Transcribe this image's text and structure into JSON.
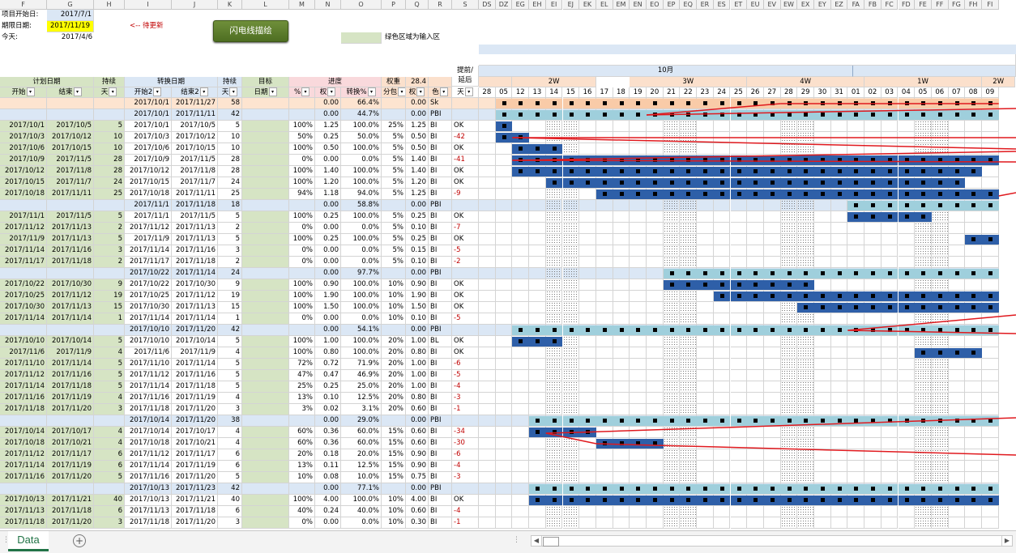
{
  "app": {
    "sheet_tab": "Data",
    "add_sheet": "+"
  },
  "col_letters_left": [
    "F",
    "G",
    "H",
    "I",
    "J",
    "K",
    "L",
    "M",
    "N",
    "O",
    "P",
    "Q",
    "R",
    "S"
  ],
  "col_letters_right": [
    "DS",
    "DZ",
    "EG",
    "EH",
    "EI",
    "EJ",
    "EK",
    "EL",
    "EM",
    "EN",
    "EO",
    "EP",
    "EQ",
    "ER",
    "ES",
    "ET",
    "EU",
    "EV",
    "EW",
    "EX",
    "EY",
    "EZ",
    "FA",
    "FB",
    "FC",
    "FD",
    "FE",
    "FF",
    "FG",
    "FH",
    "FI"
  ],
  "info": {
    "start_label": "项目开始日:",
    "start_value": "2017/7/1",
    "deadline_label": "期限日期:",
    "deadline_value": "2017/11/19",
    "update_note": "<-- 待更新",
    "today_label": "今天:",
    "today_value": "2017/4/6",
    "flash_button": "闪电线描绘",
    "green_note": "绿色区域为输入区"
  },
  "header1": {
    "plan_date": "计划日期",
    "duration": "持续",
    "convert_date": "转换日期",
    "duration2": "持续",
    "target": "目标",
    "progress": "进度",
    "weight": "权重",
    "weight_total": "28.4",
    "lead_delay": "提前/延后",
    "month": "10月"
  },
  "header2": [
    "开始",
    "结束",
    "天",
    "开始2",
    "结束2",
    "天",
    "日期",
    "%",
    "权",
    "转换%",
    "分包",
    "权",
    "色",
    "天"
  ],
  "weeks": [
    "2W",
    "3W",
    "4W",
    "1W",
    "2W"
  ],
  "days": [
    "28",
    "05",
    "12",
    "13",
    "14",
    "15",
    "16",
    "17",
    "18",
    "19",
    "20",
    "21",
    "22",
    "23",
    "24",
    "25",
    "26",
    "27",
    "28",
    "29",
    "30",
    "31",
    "01",
    "02",
    "03",
    "04",
    "05",
    "06",
    "07",
    "08",
    "09"
  ],
  "rows": [
    {
      "t": "sum",
      "F": "",
      "G": "",
      "H": "",
      "I": "2017/10/1",
      "J": "2017/11/27",
      "K": "58",
      "M": "",
      "N": "0.00",
      "O": "66.4%",
      "P": "",
      "Q": "0.00",
      "R": "Sk",
      "S": ""
    },
    {
      "t": "sum",
      "F": "",
      "G": "",
      "H": "",
      "I": "2017/10/1",
      "J": "2017/11/11",
      "K": "42",
      "M": "",
      "N": "0.00",
      "O": "44.7%",
      "P": "",
      "Q": "0.00",
      "R": "PBI",
      "S": ""
    },
    {
      "t": "d",
      "F": "2017/10/1",
      "G": "2017/10/5",
      "H": "5",
      "I": "2017/10/1",
      "J": "2017/10/5",
      "K": "5",
      "M": "100%",
      "N": "1.25",
      "O": "100.0%",
      "P": "25%",
      "Q": "1.25",
      "R": "BI",
      "S": "OK"
    },
    {
      "t": "d",
      "F": "2017/10/3",
      "G": "2017/10/12",
      "H": "10",
      "I": "2017/10/3",
      "J": "2017/10/12",
      "K": "10",
      "M": "50%",
      "N": "0.25",
      "O": "50.0%",
      "P": "5%",
      "Q": "0.50",
      "R": "BI",
      "S": "-42"
    },
    {
      "t": "d",
      "F": "2017/10/6",
      "G": "2017/10/15",
      "H": "10",
      "I": "2017/10/6",
      "J": "2017/10/15",
      "K": "10",
      "M": "100%",
      "N": "0.50",
      "O": "100.0%",
      "P": "5%",
      "Q": "0.50",
      "R": "BI",
      "S": "OK"
    },
    {
      "t": "d",
      "F": "2017/10/9",
      "G": "2017/11/5",
      "H": "28",
      "I": "2017/10/9",
      "J": "2017/11/5",
      "K": "28",
      "M": "0%",
      "N": "0.00",
      "O": "0.0%",
      "P": "5%",
      "Q": "1.40",
      "R": "BI",
      "S": "-41"
    },
    {
      "t": "d",
      "F": "2017/10/12",
      "G": "2017/11/8",
      "H": "28",
      "I": "2017/10/12",
      "J": "2017/11/8",
      "K": "28",
      "M": "100%",
      "N": "1.40",
      "O": "100.0%",
      "P": "5%",
      "Q": "1.40",
      "R": "BI",
      "S": "OK"
    },
    {
      "t": "d",
      "F": "2017/10/15",
      "G": "2017/11/7",
      "H": "24",
      "I": "2017/10/15",
      "J": "2017/11/7",
      "K": "24",
      "M": "100%",
      "N": "1.20",
      "O": "100.0%",
      "P": "5%",
      "Q": "1.20",
      "R": "BI",
      "S": "OK"
    },
    {
      "t": "d",
      "F": "2017/10/18",
      "G": "2017/11/11",
      "H": "25",
      "I": "2017/10/18",
      "J": "2017/11/11",
      "K": "25",
      "M": "94%",
      "N": "1.18",
      "O": "94.0%",
      "P": "5%",
      "Q": "1.25",
      "R": "BI",
      "S": "-9"
    },
    {
      "t": "sum",
      "F": "",
      "G": "",
      "H": "",
      "I": "2017/11/1",
      "J": "2017/11/18",
      "K": "18",
      "M": "",
      "N": "0.00",
      "O": "58.8%",
      "P": "",
      "Q": "0.00",
      "R": "PBI",
      "S": ""
    },
    {
      "t": "d",
      "F": "2017/11/1",
      "G": "2017/11/5",
      "H": "5",
      "I": "2017/11/1",
      "J": "2017/11/5",
      "K": "5",
      "M": "100%",
      "N": "0.25",
      "O": "100.0%",
      "P": "5%",
      "Q": "0.25",
      "R": "BI",
      "S": "OK"
    },
    {
      "t": "d",
      "F": "2017/11/12",
      "G": "2017/11/13",
      "H": "2",
      "I": "2017/11/12",
      "J": "2017/11/13",
      "K": "2",
      "M": "0%",
      "N": "0.00",
      "O": "0.0%",
      "P": "5%",
      "Q": "0.10",
      "R": "BI",
      "S": "-7"
    },
    {
      "t": "d",
      "F": "2017/11/9",
      "G": "2017/11/13",
      "H": "5",
      "I": "2017/11/9",
      "J": "2017/11/13",
      "K": "5",
      "M": "100%",
      "N": "0.25",
      "O": "100.0%",
      "P": "5%",
      "Q": "0.25",
      "R": "BI",
      "S": "OK"
    },
    {
      "t": "d",
      "F": "2017/11/14",
      "G": "2017/11/16",
      "H": "3",
      "I": "2017/11/14",
      "J": "2017/11/16",
      "K": "3",
      "M": "0%",
      "N": "0.00",
      "O": "0.0%",
      "P": "5%",
      "Q": "0.15",
      "R": "BI",
      "S": "-5"
    },
    {
      "t": "d",
      "F": "2017/11/17",
      "G": "2017/11/18",
      "H": "2",
      "I": "2017/11/17",
      "J": "2017/11/18",
      "K": "2",
      "M": "0%",
      "N": "0.00",
      "O": "0.0%",
      "P": "5%",
      "Q": "0.10",
      "R": "BI",
      "S": "-2"
    },
    {
      "t": "sum",
      "F": "",
      "G": "",
      "H": "",
      "I": "2017/10/22",
      "J": "2017/11/14",
      "K": "24",
      "M": "",
      "N": "0.00",
      "O": "97.7%",
      "P": "",
      "Q": "0.00",
      "R": "PBI",
      "S": ""
    },
    {
      "t": "d",
      "F": "2017/10/22",
      "G": "2017/10/30",
      "H": "9",
      "I": "2017/10/22",
      "J": "2017/10/30",
      "K": "9",
      "M": "100%",
      "N": "0.90",
      "O": "100.0%",
      "P": "10%",
      "Q": "0.90",
      "R": "BI",
      "S": "OK"
    },
    {
      "t": "d",
      "F": "2017/10/25",
      "G": "2017/11/12",
      "H": "19",
      "I": "2017/10/25",
      "J": "2017/11/12",
      "K": "19",
      "M": "100%",
      "N": "1.90",
      "O": "100.0%",
      "P": "10%",
      "Q": "1.90",
      "R": "BI",
      "S": "OK"
    },
    {
      "t": "d",
      "F": "2017/10/30",
      "G": "2017/11/13",
      "H": "15",
      "I": "2017/10/30",
      "J": "2017/11/13",
      "K": "15",
      "M": "100%",
      "N": "1.50",
      "O": "100.0%",
      "P": "10%",
      "Q": "1.50",
      "R": "BI",
      "S": "OK"
    },
    {
      "t": "d",
      "F": "2017/11/14",
      "G": "2017/11/14",
      "H": "1",
      "I": "2017/11/14",
      "J": "2017/11/14",
      "K": "1",
      "M": "0%",
      "N": "0.00",
      "O": "0.0%",
      "P": "10%",
      "Q": "0.10",
      "R": "BI",
      "S": "-5"
    },
    {
      "t": "sum",
      "F": "",
      "G": "",
      "H": "",
      "I": "2017/10/10",
      "J": "2017/11/20",
      "K": "42",
      "M": "",
      "N": "0.00",
      "O": "54.1%",
      "P": "",
      "Q": "0.00",
      "R": "PBI",
      "S": ""
    },
    {
      "t": "d",
      "F": "2017/10/10",
      "G": "2017/10/14",
      "H": "5",
      "I": "2017/10/10",
      "J": "2017/10/14",
      "K": "5",
      "M": "100%",
      "N": "1.00",
      "O": "100.0%",
      "P": "20%",
      "Q": "1.00",
      "R": "BL",
      "S": "OK"
    },
    {
      "t": "d",
      "F": "2017/11/6",
      "G": "2017/11/9",
      "H": "4",
      "I": "2017/11/6",
      "J": "2017/11/9",
      "K": "4",
      "M": "100%",
      "N": "0.80",
      "O": "100.0%",
      "P": "20%",
      "Q": "0.80",
      "R": "BI",
      "S": "OK"
    },
    {
      "t": "d",
      "F": "2017/11/10",
      "G": "2017/11/14",
      "H": "5",
      "I": "2017/11/10",
      "J": "2017/11/14",
      "K": "5",
      "M": "72%",
      "N": "0.72",
      "O": "71.9%",
      "P": "20%",
      "Q": "1.00",
      "R": "BI",
      "S": "-6"
    },
    {
      "t": "d",
      "F": "2017/11/12",
      "G": "2017/11/16",
      "H": "5",
      "I": "2017/11/12",
      "J": "2017/11/16",
      "K": "5",
      "M": "47%",
      "N": "0.47",
      "O": "46.9%",
      "P": "20%",
      "Q": "1.00",
      "R": "BI",
      "S": "-5"
    },
    {
      "t": "d",
      "F": "2017/11/14",
      "G": "2017/11/18",
      "H": "5",
      "I": "2017/11/14",
      "J": "2017/11/18",
      "K": "5",
      "M": "25%",
      "N": "0.25",
      "O": "25.0%",
      "P": "20%",
      "Q": "1.00",
      "R": "BI",
      "S": "-4"
    },
    {
      "t": "d",
      "F": "2017/11/16",
      "G": "2017/11/19",
      "H": "4",
      "I": "2017/11/16",
      "J": "2017/11/19",
      "K": "4",
      "M": "13%",
      "N": "0.10",
      "O": "12.5%",
      "P": "20%",
      "Q": "0.80",
      "R": "BI",
      "S": "-3"
    },
    {
      "t": "d",
      "F": "2017/11/18",
      "G": "2017/11/20",
      "H": "3",
      "I": "2017/11/18",
      "J": "2017/11/20",
      "K": "3",
      "M": "3%",
      "N": "0.02",
      "O": "3.1%",
      "P": "20%",
      "Q": "0.60",
      "R": "BI",
      "S": "-1"
    },
    {
      "t": "sum",
      "F": "",
      "G": "",
      "H": "",
      "I": "2017/10/14",
      "J": "2017/11/20",
      "K": "38",
      "M": "",
      "N": "0.00",
      "O": "29.0%",
      "P": "",
      "Q": "0.00",
      "R": "PBI",
      "S": ""
    },
    {
      "t": "d",
      "F": "2017/10/14",
      "G": "2017/10/17",
      "H": "4",
      "I": "2017/10/14",
      "J": "2017/10/17",
      "K": "4",
      "M": "60%",
      "N": "0.36",
      "O": "60.0%",
      "P": "15%",
      "Q": "0.60",
      "R": "BI",
      "S": "-34"
    },
    {
      "t": "d",
      "F": "2017/10/18",
      "G": "2017/10/21",
      "H": "4",
      "I": "2017/10/18",
      "J": "2017/10/21",
      "K": "4",
      "M": "60%",
      "N": "0.36",
      "O": "60.0%",
      "P": "15%",
      "Q": "0.60",
      "R": "BI",
      "S": "-30"
    },
    {
      "t": "d",
      "F": "2017/11/12",
      "G": "2017/11/17",
      "H": "6",
      "I": "2017/11/12",
      "J": "2017/11/17",
      "K": "6",
      "M": "20%",
      "N": "0.18",
      "O": "20.0%",
      "P": "15%",
      "Q": "0.90",
      "R": "BI",
      "S": "-6"
    },
    {
      "t": "d",
      "F": "2017/11/14",
      "G": "2017/11/19",
      "H": "6",
      "I": "2017/11/14",
      "J": "2017/11/19",
      "K": "6",
      "M": "13%",
      "N": "0.11",
      "O": "12.5%",
      "P": "15%",
      "Q": "0.90",
      "R": "BI",
      "S": "-4"
    },
    {
      "t": "d",
      "F": "2017/11/16",
      "G": "2017/11/20",
      "H": "5",
      "I": "2017/11/16",
      "J": "2017/11/20",
      "K": "5",
      "M": "10%",
      "N": "0.08",
      "O": "10.0%",
      "P": "15%",
      "Q": "0.75",
      "R": "BI",
      "S": "-3"
    },
    {
      "t": "sum",
      "F": "",
      "G": "",
      "H": "",
      "I": "2017/10/13",
      "J": "2017/11/23",
      "K": "42",
      "M": "",
      "N": "0.00",
      "O": "77.1%",
      "P": "",
      "Q": "0.00",
      "R": "PBI",
      "S": ""
    },
    {
      "t": "d",
      "F": "2017/10/13",
      "G": "2017/11/21",
      "H": "40",
      "I": "2017/10/13",
      "J": "2017/11/21",
      "K": "40",
      "M": "100%",
      "N": "4.00",
      "O": "100.0%",
      "P": "10%",
      "Q": "4.00",
      "R": "BI",
      "S": "OK"
    },
    {
      "t": "d",
      "F": "2017/11/13",
      "G": "2017/11/18",
      "H": "6",
      "I": "2017/11/13",
      "J": "2017/11/18",
      "K": "6",
      "M": "40%",
      "N": "0.24",
      "O": "40.0%",
      "P": "10%",
      "Q": "0.60",
      "R": "BI",
      "S": "-4"
    },
    {
      "t": "d",
      "F": "2017/11/18",
      "G": "2017/11/20",
      "H": "3",
      "I": "2017/11/18",
      "J": "2017/11/20",
      "K": "3",
      "M": "0%",
      "N": "0.00",
      "O": "0.0%",
      "P": "10%",
      "Q": "0.30",
      "R": "BI",
      "S": "-1"
    }
  ],
  "gantt": [
    {
      "c": "orange",
      "s": 1,
      "e": 31
    },
    {
      "c": "light",
      "s": 1,
      "e": 31
    },
    {
      "c": "dark",
      "s": 1,
      "e": 1
    },
    {
      "c": "dark",
      "s": 1,
      "e": 2
    },
    {
      "c": "dark",
      "s": 2,
      "e": 4
    },
    {
      "c": "dark",
      "s": 2,
      "e": 30
    },
    {
      "c": "dark",
      "s": 2,
      "e": 29
    },
    {
      "c": "dark",
      "s": 4,
      "e": 28
    },
    {
      "c": "dark",
      "s": 7,
      "e": 31
    },
    {
      "c": "light",
      "s": 22,
      "e": 31
    },
    {
      "c": "dark",
      "s": 22,
      "e": 26
    },
    {
      "c": "none",
      "s": 0,
      "e": -1
    },
    {
      "c": "dark",
      "s": 29,
      "e": 31
    },
    {
      "c": "none",
      "s": 0,
      "e": -1
    },
    {
      "c": "none",
      "s": 0,
      "e": -1
    },
    {
      "c": "light",
      "s": 11,
      "e": 31
    },
    {
      "c": "dark",
      "s": 11,
      "e": 19
    },
    {
      "c": "dark",
      "s": 14,
      "e": 31
    },
    {
      "c": "dark",
      "s": 19,
      "e": 31
    },
    {
      "c": "none",
      "s": 0,
      "e": -1
    },
    {
      "c": "light",
      "s": 2,
      "e": 31
    },
    {
      "c": "dark",
      "s": 2,
      "e": 4
    },
    {
      "c": "dark",
      "s": 26,
      "e": 29
    },
    {
      "c": "none",
      "s": 0,
      "e": -1
    },
    {
      "c": "none",
      "s": 0,
      "e": -1
    },
    {
      "c": "none",
      "s": 0,
      "e": -1
    },
    {
      "c": "none",
      "s": 0,
      "e": -1
    },
    {
      "c": "none",
      "s": 0,
      "e": -1
    },
    {
      "c": "light",
      "s": 3,
      "e": 31
    },
    {
      "c": "dark",
      "s": 3,
      "e": 6
    },
    {
      "c": "dark",
      "s": 7,
      "e": 10
    },
    {
      "c": "none",
      "s": 0,
      "e": -1
    },
    {
      "c": "none",
      "s": 0,
      "e": -1
    },
    {
      "c": "none",
      "s": 0,
      "e": -1
    },
    {
      "c": "light",
      "s": 3,
      "e": 31
    },
    {
      "c": "dark",
      "s": 3,
      "e": 31
    },
    {
      "c": "none",
      "s": 0,
      "e": -1
    },
    {
      "c": "none",
      "s": 0,
      "e": -1
    }
  ],
  "colors": {
    "dark": "#2e5fa8",
    "light": "#9fcfdc",
    "orange": "#f9cba8",
    "green": "#d6e4c4",
    "header_blue": "#dbe7f5",
    "header_peach": "#fbe0cc",
    "header_pink": "#f9d9dc",
    "accent": "#217346"
  }
}
